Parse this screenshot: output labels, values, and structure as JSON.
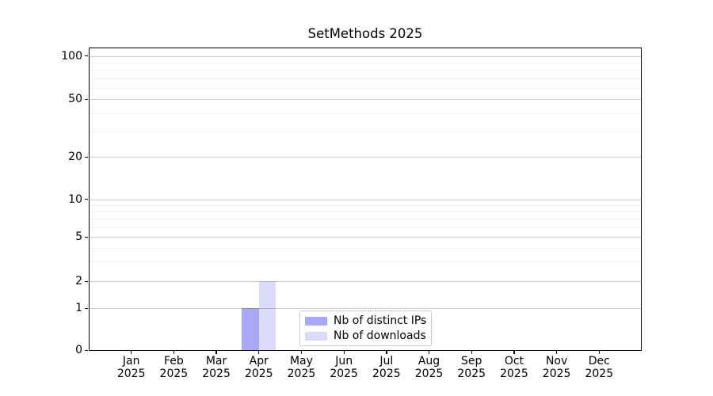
{
  "chart_data": {
    "type": "bar",
    "title": "SetMethods 2025",
    "x_categories": [
      "Jan",
      "Feb",
      "Mar",
      "Apr",
      "May",
      "Jun",
      "Jul",
      "Aug",
      "Sep",
      "Oct",
      "Nov",
      "Dec"
    ],
    "x_year": "2025",
    "series": [
      {
        "name": "Nb of distinct IPs",
        "color": "#a9a9f6",
        "values": [
          0,
          0,
          0,
          1,
          0,
          0,
          0,
          0,
          0,
          0,
          0,
          0
        ]
      },
      {
        "name": "Nb of downloads",
        "color": "#dbdbf9",
        "values": [
          0,
          0,
          0,
          2,
          0,
          0,
          0,
          0,
          0,
          0,
          0,
          0
        ]
      }
    ],
    "y_axis": {
      "scale": "symlog",
      "ticks": [
        0,
        1,
        2,
        5,
        10,
        20,
        50,
        100
      ],
      "minor_ticks": [
        3,
        4,
        6,
        7,
        8,
        9,
        30,
        40,
        60,
        70,
        80,
        90
      ],
      "range": [
        0,
        115
      ]
    },
    "grid": {
      "on": true,
      "major_color": "#cccccc",
      "minor_color": "#f0f0f0"
    },
    "legend": {
      "position": "lower center",
      "border_color": "#cbcbcb"
    },
    "colors": {
      "background": "#ffffff",
      "axis": "#000000",
      "text": "#000000"
    }
  }
}
